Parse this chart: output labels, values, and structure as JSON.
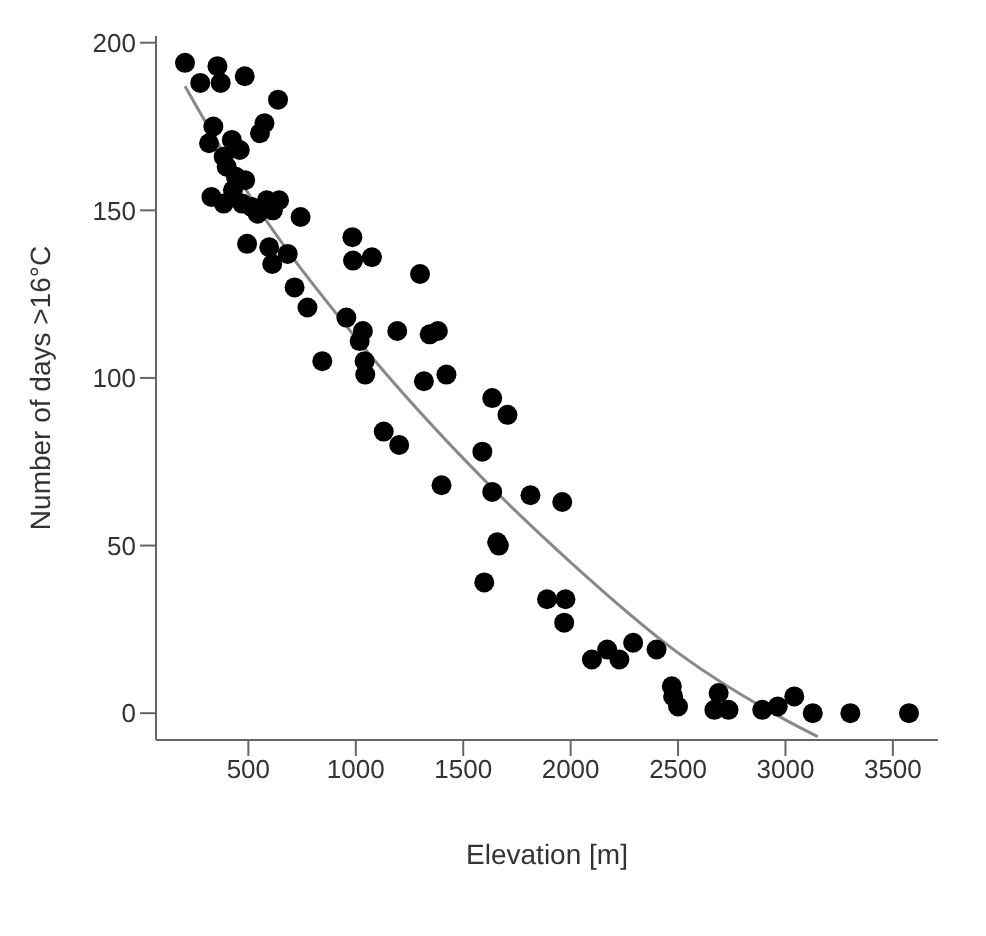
{
  "chart_data": {
    "type": "scatter",
    "xlabel": "Elevation [m]",
    "ylabel": "Number of days >16°C",
    "xlim": [
      70,
      3710
    ],
    "ylim": [
      -8,
      202
    ],
    "xticks": [
      500,
      1000,
      1500,
      2000,
      2500,
      3000,
      3500
    ],
    "yticks": [
      0,
      50,
      100,
      150,
      200
    ],
    "grid": false,
    "legend": false,
    "marker": "circle",
    "series": [
      {
        "color": "#000000",
        "x": [
          205,
          356,
          276,
          371,
          483,
          638,
          337,
          575,
          554,
          317,
          423,
          460,
          385,
          399,
          442,
          485,
          328,
          385,
          428,
          471,
          514,
          543,
          586,
          643,
          614,
          743,
          494,
          597,
          611,
          683,
          715,
          775,
          984,
          987,
          1075,
          1299,
          956,
          1033,
          1018,
          1193,
          1344,
          1382,
          844,
          1041,
          1044,
          1317,
          1422,
          1635,
          1706,
          1130,
          1202,
          1589,
          1399,
          1635,
          1813,
          1658,
          1666,
          1598,
          1961,
          1890,
          1976,
          1970,
          2099,
          2170,
          2227,
          2291,
          2400,
          2471,
          2477,
          2500,
          2669,
          2689,
          2735,
          2892,
          2964,
          3041,
          3127,
          3302,
          3575
        ],
        "values": [
          194,
          193,
          188,
          188,
          190,
          183,
          175,
          176,
          173,
          170,
          171,
          168,
          166,
          163,
          160,
          159,
          154,
          152,
          156,
          152,
          151,
          149,
          153,
          153,
          150,
          148,
          140,
          139,
          134,
          137,
          127,
          121,
          142,
          135,
          136,
          131,
          118,
          114,
          111,
          114,
          113,
          114,
          105,
          105,
          101,
          99,
          101,
          94,
          89,
          84,
          80,
          78,
          68,
          66,
          65,
          51,
          50,
          39,
          63,
          34,
          34,
          27,
          16,
          19,
          16,
          21,
          19,
          8,
          5,
          2,
          1,
          6,
          1,
          1,
          2,
          5,
          0,
          0,
          0
        ]
      },
      {
        "type": "line",
        "color": "#888888",
        "marker": "none",
        "x": [
          205,
          500,
          1000,
          1500,
          2000,
          2500,
          3000,
          3150
        ],
        "values": [
          187,
          155,
          112,
          76,
          45,
          18,
          -2,
          -7
        ]
      }
    ]
  }
}
